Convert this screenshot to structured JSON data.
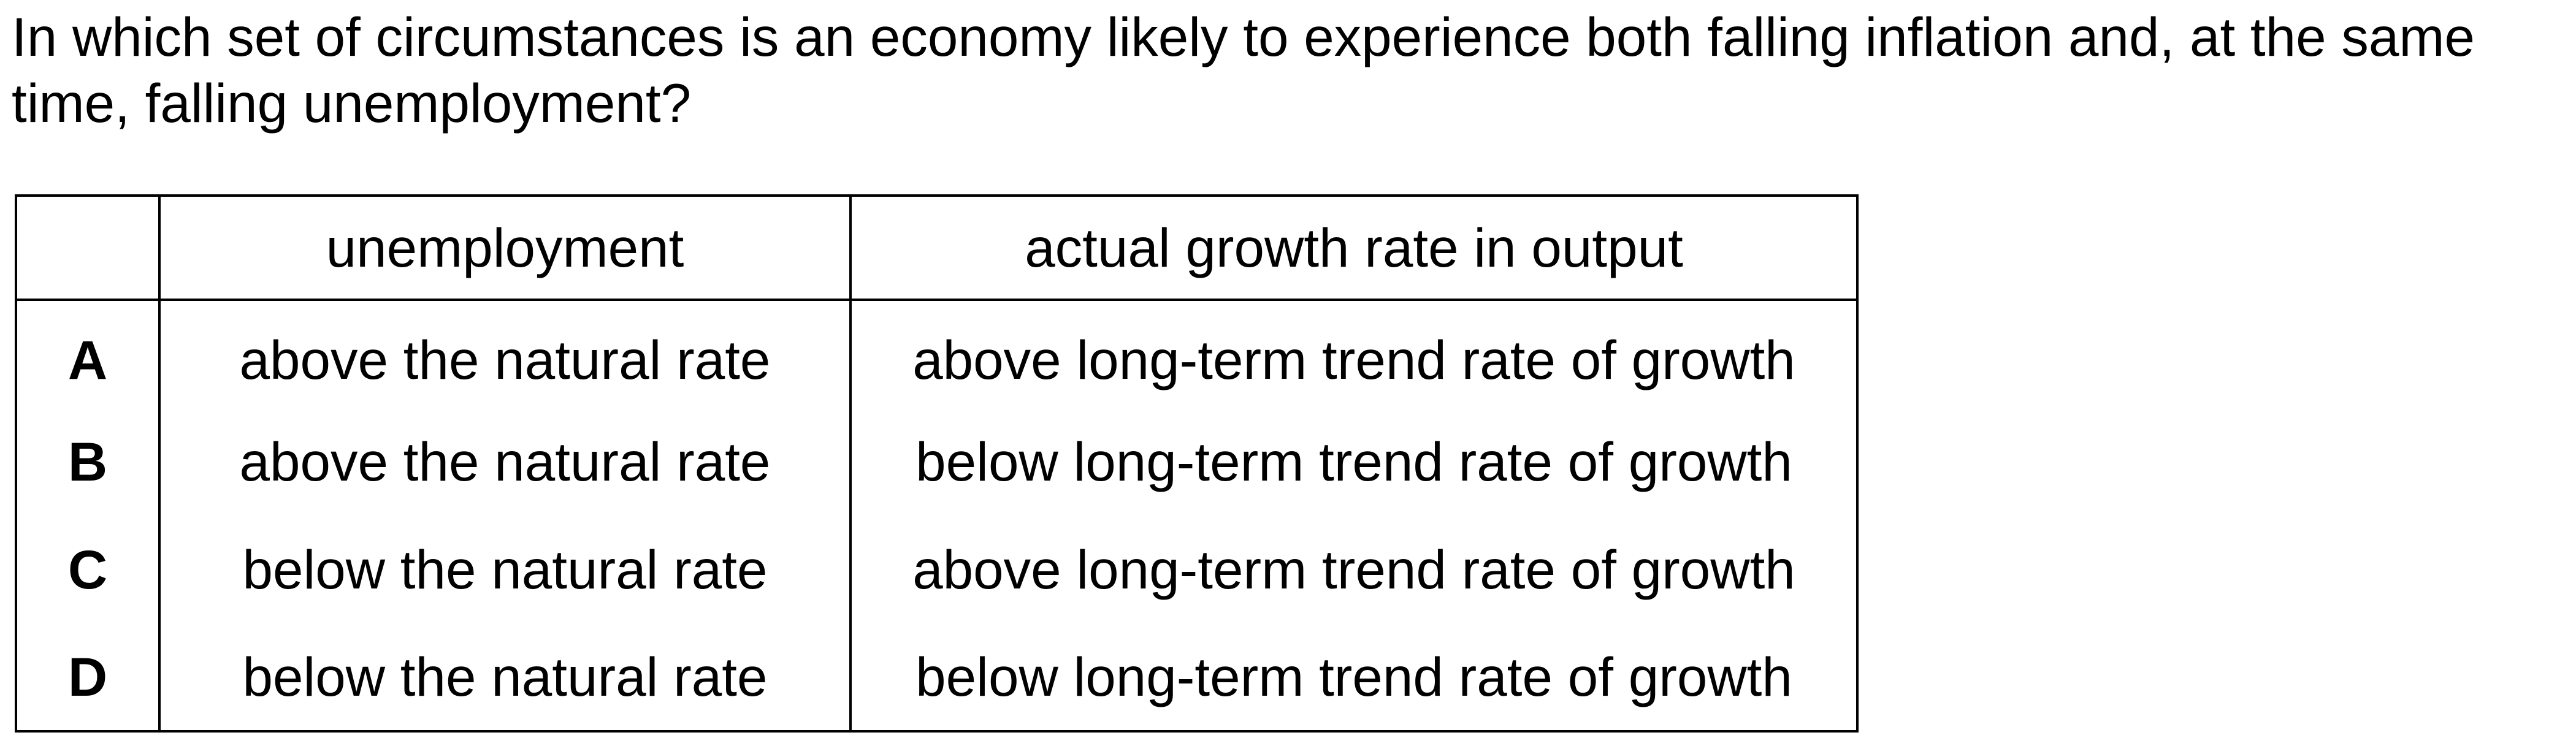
{
  "question": {
    "text": "In which set of circumstances is an economy likely to experience both falling inflation and, at the same time, falling unemployment?"
  },
  "table": {
    "headers": [
      "",
      "unemployment",
      "actual growth rate in output"
    ],
    "rows": [
      {
        "letter": "A",
        "unemployment": "above the natural rate",
        "growth": "above long-term trend rate of growth"
      },
      {
        "letter": "B",
        "unemployment": "above the natural rate",
        "growth": "below long-term trend rate of growth"
      },
      {
        "letter": "C",
        "unemployment": "below the natural rate",
        "growth": "above long-term trend rate of growth"
      },
      {
        "letter": "D",
        "unemployment": "below the natural rate",
        "growth": "below long-term trend rate of growth"
      }
    ]
  }
}
